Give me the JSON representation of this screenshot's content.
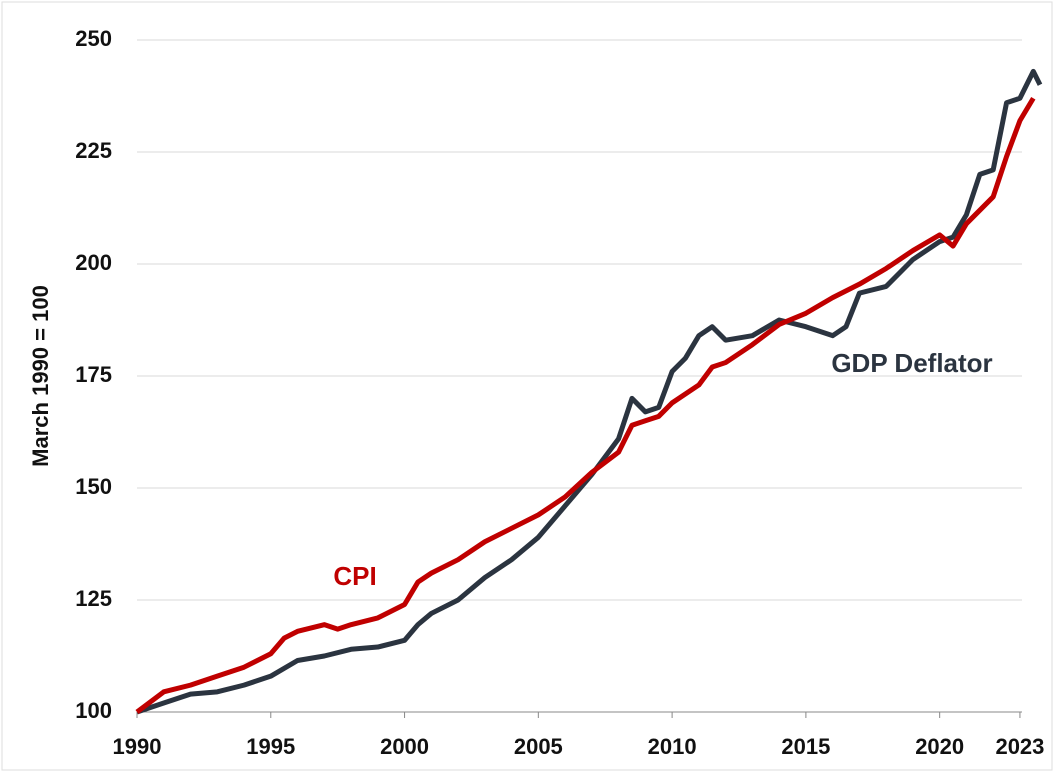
{
  "chart_data": {
    "type": "line",
    "y_label": "March 1990 = 100",
    "annotations": [
      {
        "text": "CPI",
        "color": "#c00000"
      },
      {
        "text": "GDP Deflator",
        "color": "#2b3440"
      }
    ],
    "xlim": [
      1990,
      2023.75
    ],
    "xticks": [
      1990,
      1995,
      2000,
      2005,
      2010,
      2015,
      2020,
      2023
    ],
    "ylim": [
      100,
      250
    ],
    "yticks": [
      100,
      125,
      150,
      175,
      200,
      225,
      250
    ],
    "grid": true,
    "series": [
      {
        "name": "CPI",
        "color": "#c00000",
        "x": [
          1990,
          1991,
          1992,
          1993,
          1994,
          1995,
          1995.5,
          1996,
          1997,
          1997.5,
          1998,
          1999,
          2000,
          2000.5,
          2001,
          2002,
          2003,
          2004,
          2005,
          2006,
          2007,
          2008,
          2008.5,
          2009,
          2009.5,
          2010,
          2011,
          2011.5,
          2012,
          2013,
          2014,
          2015,
          2016,
          2017,
          2018,
          2019,
          2020,
          2020.5,
          2021,
          2022,
          2022.5,
          2023,
          2023.5
        ],
        "values": [
          100,
          104.5,
          106,
          108,
          110,
          113,
          116.5,
          118,
          119.5,
          118.5,
          119.5,
          121,
          124,
          129,
          131,
          134,
          138,
          141,
          144,
          148,
          153.5,
          158,
          164,
          165,
          166,
          169,
          173,
          177,
          178,
          182,
          186.5,
          189,
          192.5,
          195.5,
          199,
          203,
          206.5,
          204,
          209,
          215,
          224,
          232,
          237
        ]
      },
      {
        "name": "GDP Deflator",
        "color": "#2b3440",
        "x": [
          1990,
          1991,
          1992,
          1993,
          1994,
          1995,
          1996,
          1997,
          1998,
          1999,
          2000,
          2000.5,
          2001,
          2002,
          2003,
          2004,
          2005,
          2006,
          2007,
          2008,
          2008.5,
          2009,
          2009.5,
          2010,
          2010.5,
          2011,
          2011.5,
          2012,
          2013,
          2014,
          2015,
          2016,
          2016.5,
          2017,
          2018,
          2019,
          2020,
          2020.5,
          2021,
          2021.5,
          2022,
          2022.5,
          2023,
          2023.5,
          2023.75
        ],
        "values": [
          100,
          102,
          104,
          104.5,
          106,
          108,
          111.5,
          112.5,
          114,
          114.5,
          116,
          119.5,
          122,
          125,
          130,
          134,
          139,
          146,
          153,
          161,
          170,
          167,
          168,
          176,
          179,
          184,
          186,
          183,
          184,
          187.5,
          186,
          184,
          186,
          193.5,
          195,
          201,
          205,
          206,
          211,
          220,
          221,
          236,
          237,
          243,
          240
        ]
      }
    ]
  }
}
